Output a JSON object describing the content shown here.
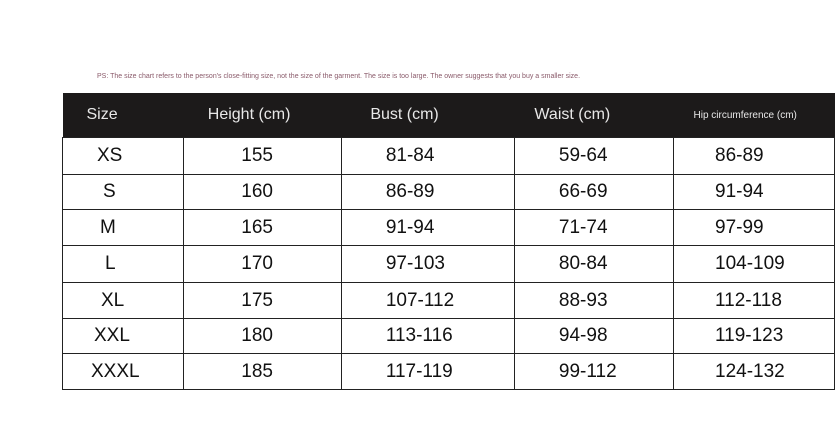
{
  "note": "PS: The size chart refers to the person's close-fitting size, not the size of the garment. The size is too large. The owner suggests that you buy a smaller size.",
  "headers": [
    "Size",
    "Height (cm)",
    "Bust (cm)",
    "Waist (cm)",
    "Hip circumference (cm)"
  ],
  "rows": [
    [
      "XS",
      "155",
      "81-84",
      "59-64",
      "86-89"
    ],
    [
      "S",
      "160",
      "86-89",
      "66-69",
      "91-94"
    ],
    [
      "M",
      "165",
      "91-94",
      "71-74",
      "97-99"
    ],
    [
      "L",
      "170",
      "97-103",
      "80-84",
      "104-109"
    ],
    [
      "XL",
      "175",
      "107-112",
      "88-93",
      "112-118"
    ],
    [
      "XXL",
      "180",
      "113-116",
      "94-98",
      "119-123"
    ],
    [
      "XXXL",
      "185",
      "117-119",
      "99-112",
      "124-132"
    ]
  ]
}
